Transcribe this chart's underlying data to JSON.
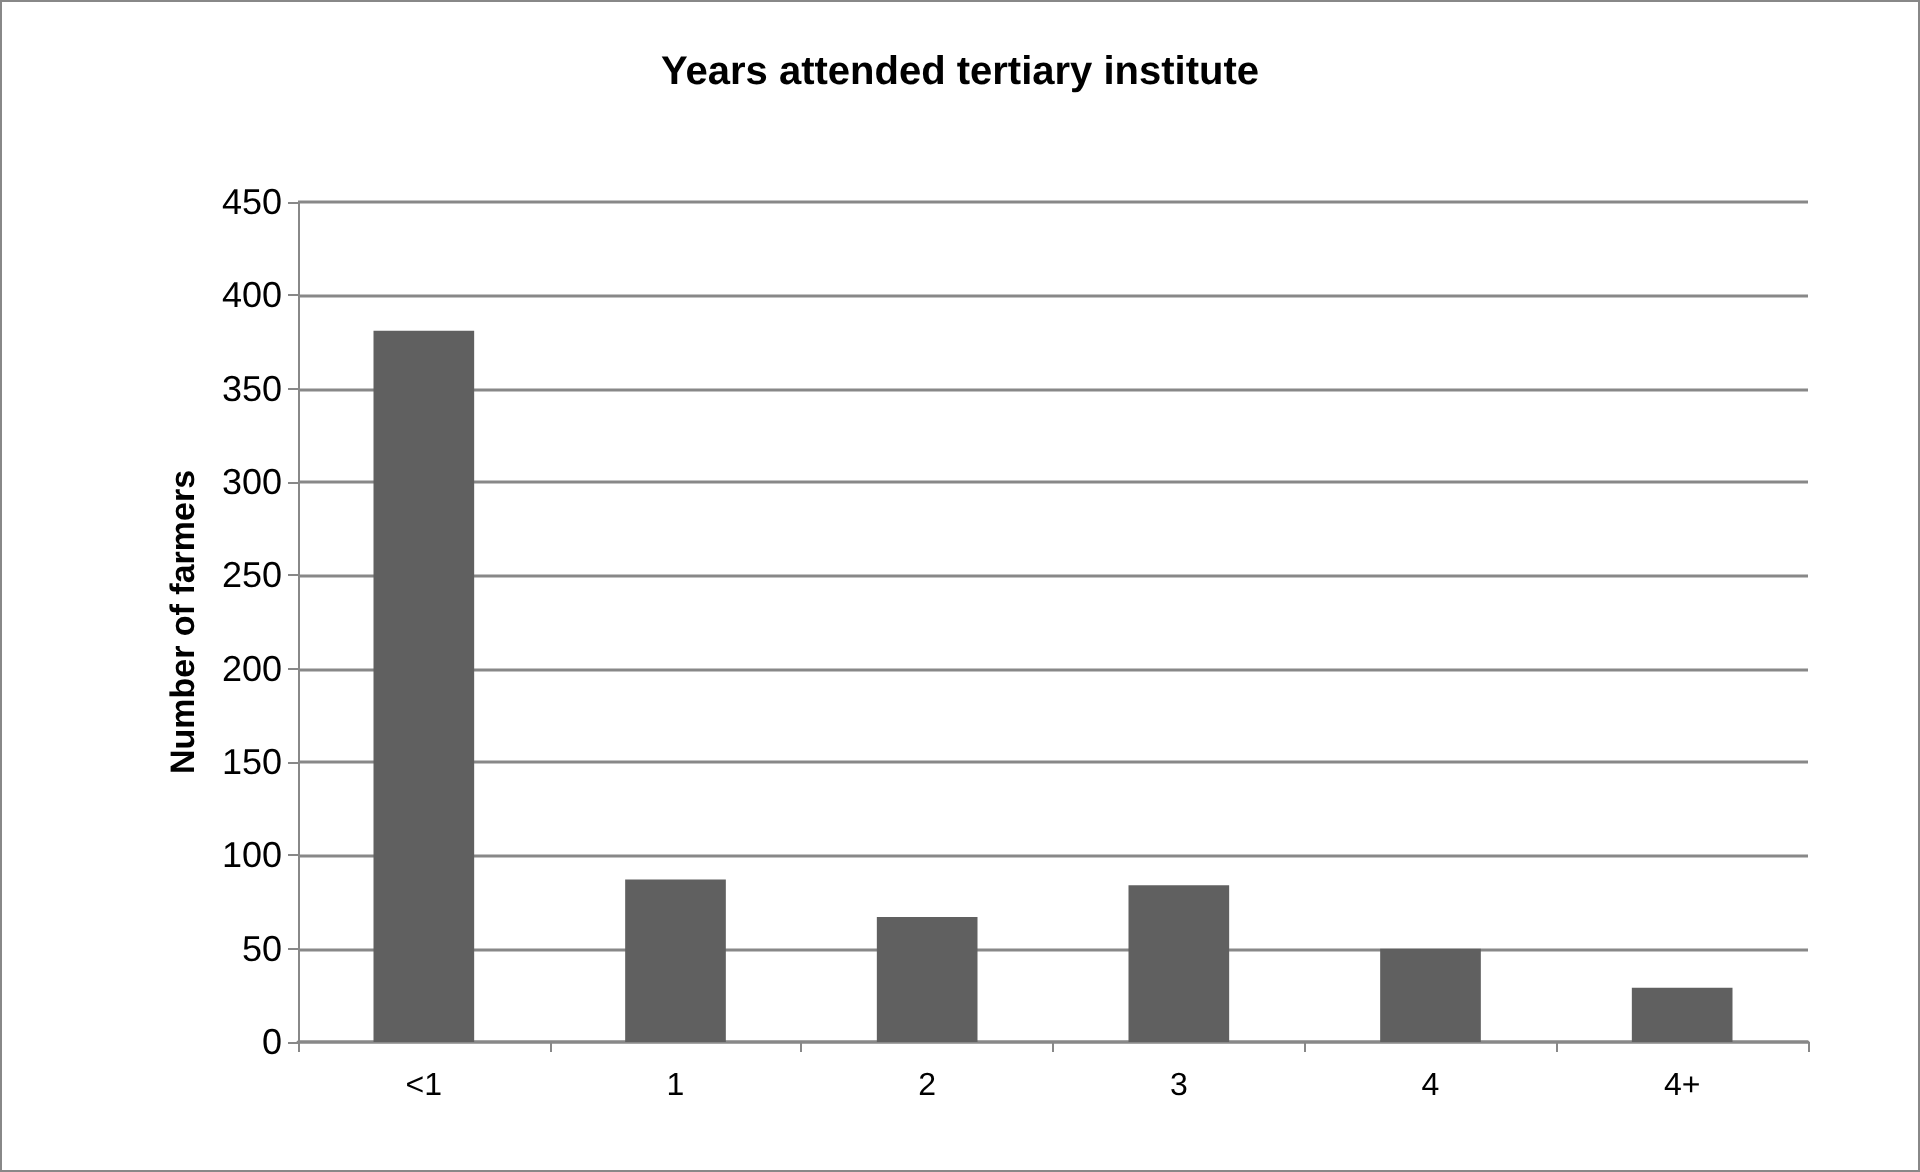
{
  "chart_data": {
    "type": "bar",
    "title": "Years attended tertiary institute",
    "ylabel": "Number of farmers",
    "categories": [
      "<1",
      "1",
      "2",
      "3",
      "4",
      "4+"
    ],
    "values": [
      381,
      87,
      67,
      84,
      50,
      29
    ],
    "color": "#606060",
    "ylim": [
      0,
      450
    ],
    "yticks": [
      0,
      50,
      100,
      150,
      200,
      250,
      300,
      350,
      400,
      450
    ],
    "grid": "y"
  }
}
